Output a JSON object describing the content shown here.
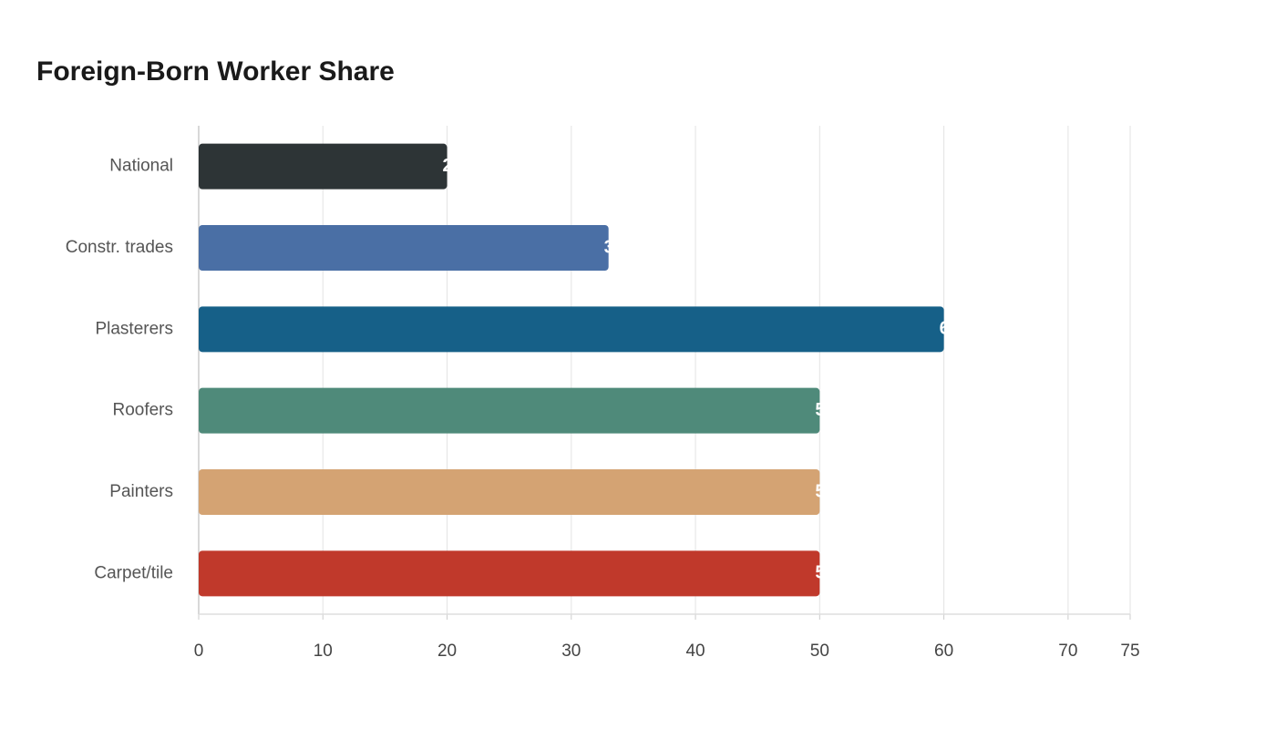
{
  "chart_data": {
    "type": "bar",
    "orientation": "horizontal",
    "title": "Foreign-Born Worker Share",
    "categories": [
      "National",
      "Constr. trades",
      "Plasterers",
      "Roofers",
      "Painters",
      "Carpet/tile"
    ],
    "values": [
      20,
      33,
      60,
      50,
      50,
      50
    ],
    "colors": [
      "#2d3436",
      "#4a6fa5",
      "#166088",
      "#4f8a7a",
      "#d4a373",
      "#c0392b"
    ],
    "xlim": [
      0,
      75
    ],
    "xticks": [
      0,
      10,
      20,
      30,
      40,
      50,
      60,
      70,
      75
    ],
    "grid": true
  }
}
